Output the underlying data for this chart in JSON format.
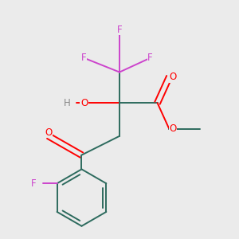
{
  "background_color": "#ebebeb",
  "bond_color": "#2d6b5e",
  "F_color": "#cc44cc",
  "O_color": "#ff0000",
  "H_color": "#888888",
  "lw": 1.4,
  "figsize": [
    3.0,
    3.0
  ],
  "dpi": 100,
  "xlim": [
    0.0,
    1.0
  ],
  "ylim": [
    0.0,
    1.0
  ]
}
